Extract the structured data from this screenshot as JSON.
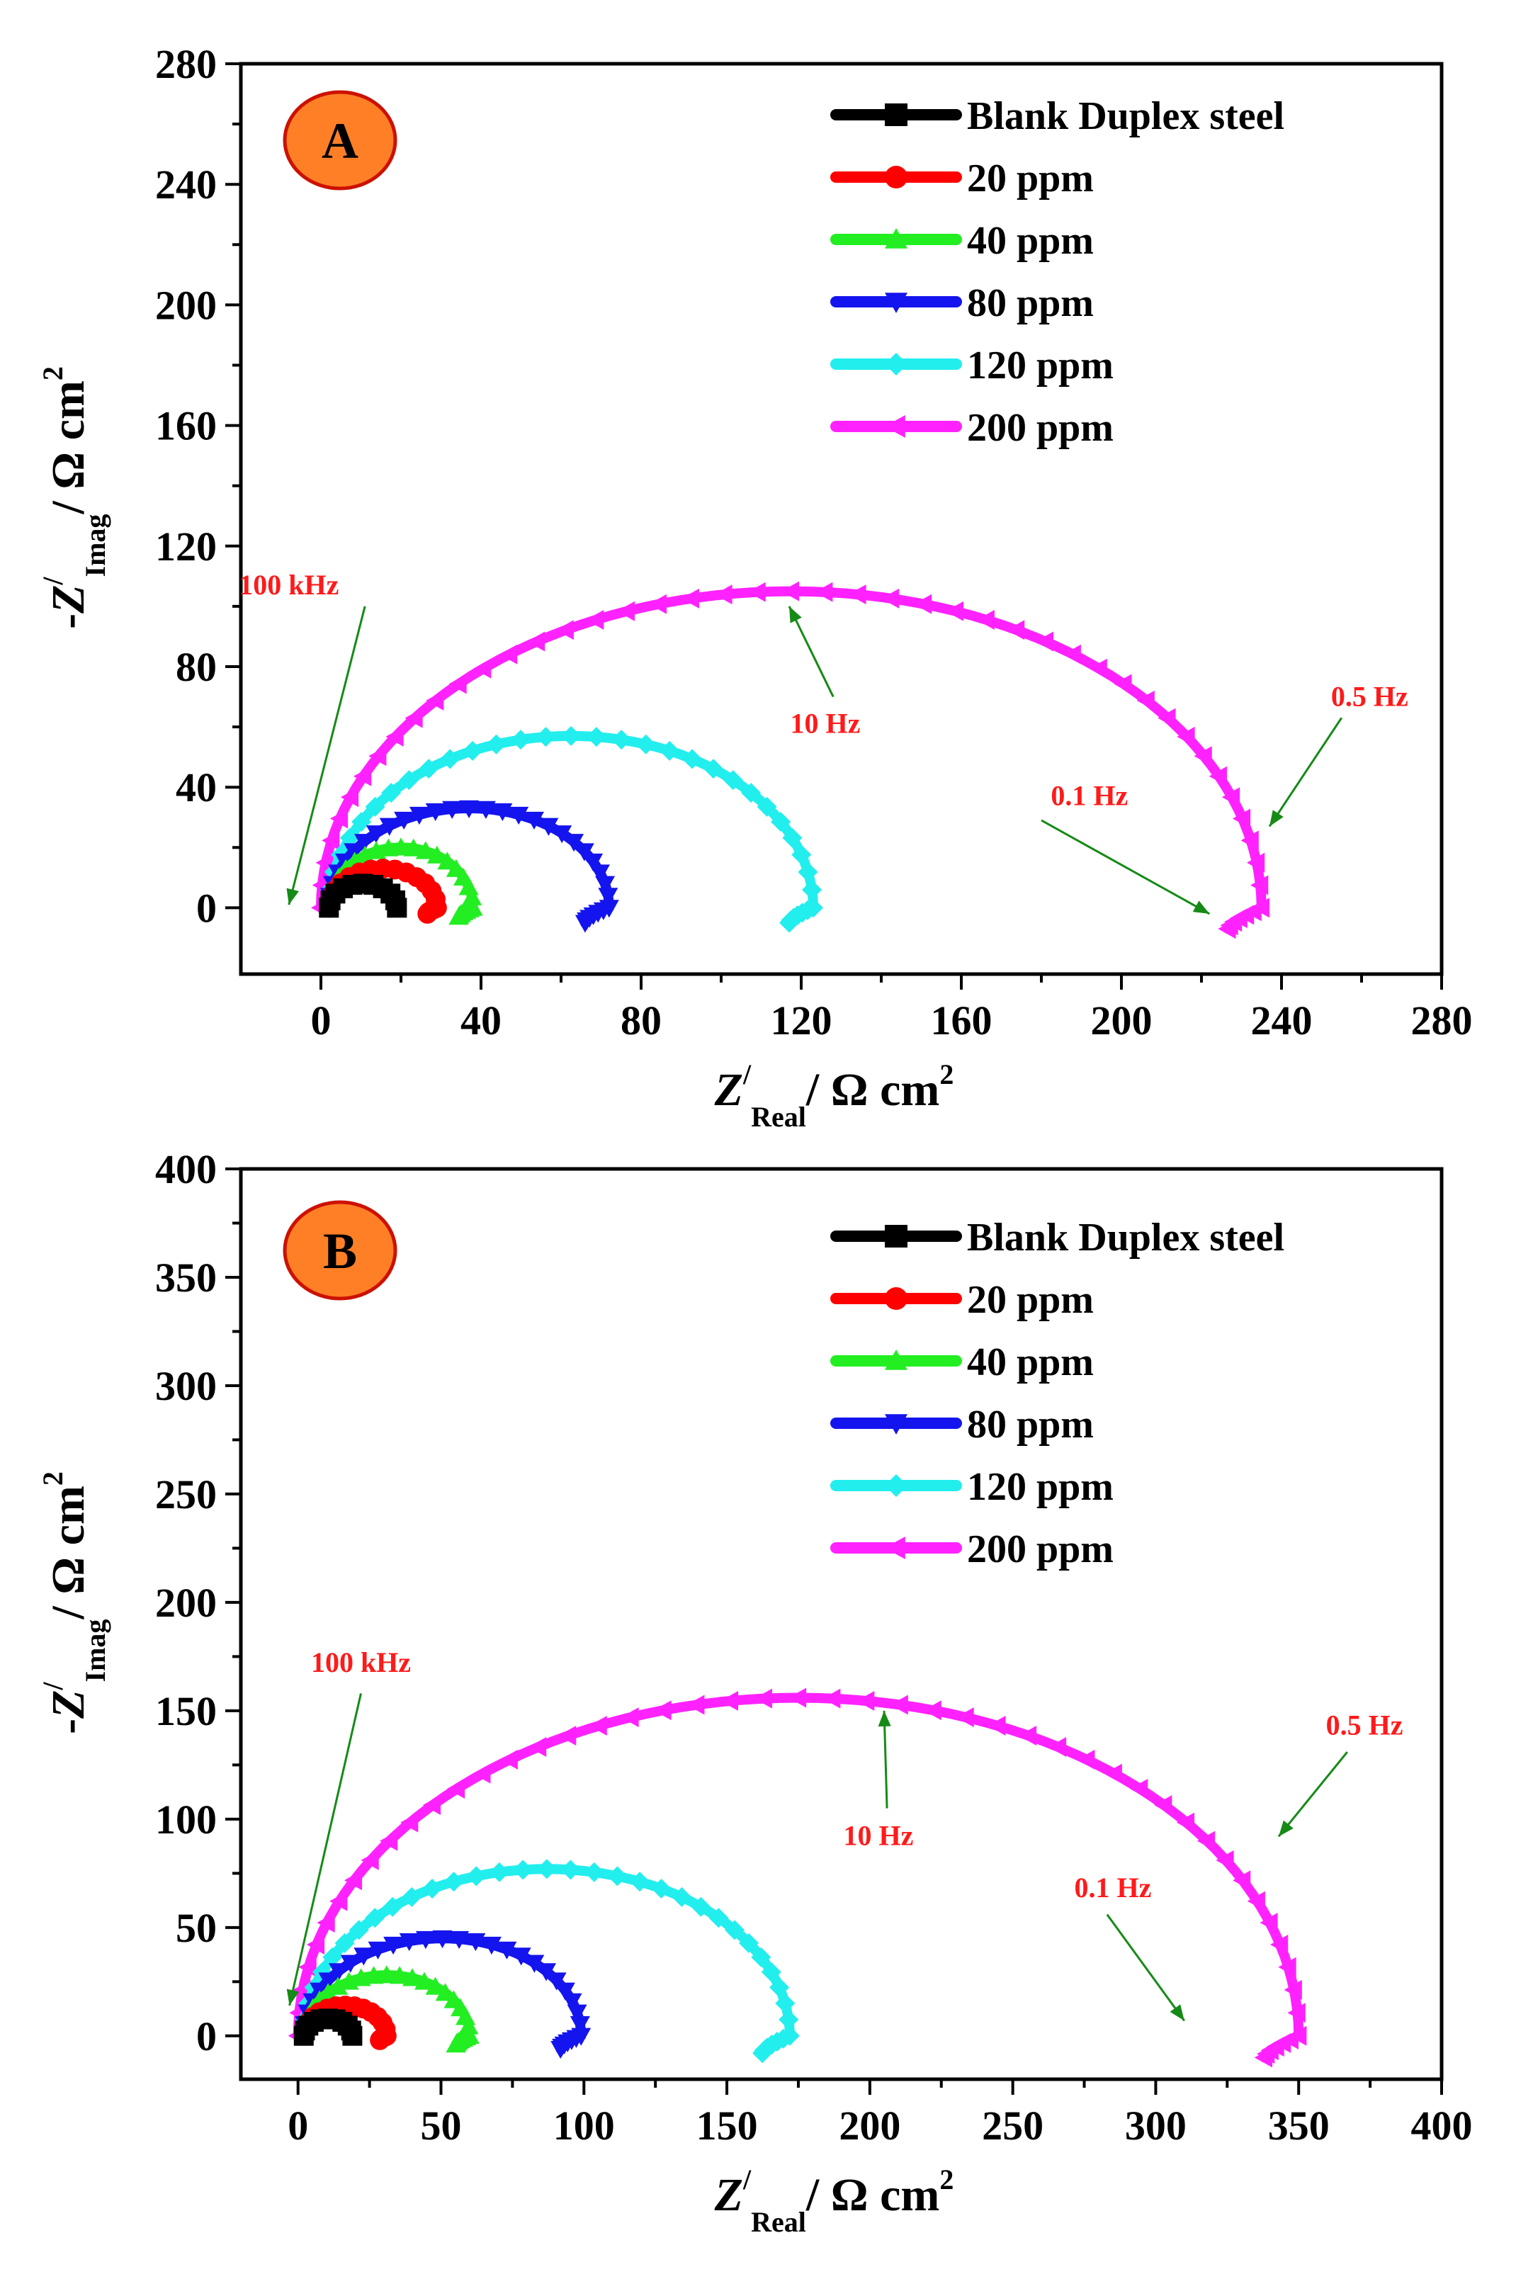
{
  "figure": {
    "series_styles": [
      {
        "name": "Blank Duplex steel",
        "color": "#000000",
        "marker": "square"
      },
      {
        "name": "20 ppm",
        "color": "#ff0000",
        "marker": "circle"
      },
      {
        "name": "40 ppm",
        "color": "#22ee22",
        "marker": "triangle-up"
      },
      {
        "name": "80 ppm",
        "color": "#1414ee",
        "marker": "triangle-down"
      },
      {
        "name": "120 ppm",
        "color": "#22eeee",
        "marker": "diamond"
      },
      {
        "name": "200 ppm",
        "color": "#ff22ff",
        "marker": "triangle-left"
      }
    ],
    "badge_fill": "#ff7f27",
    "badge_stroke": "#cc1100",
    "annotation_color": "#ff1a1a",
    "arrow_color": "#168a16"
  },
  "chart_data": [
    {
      "type": "scatter",
      "panel_label": "A",
      "xlabel": {
        "main": "Z",
        "prime": "/",
        "sub": "Real",
        "unit": "/ Ω cm",
        "sup": "2"
      },
      "ylabel": {
        "sign": "-",
        "main": "Z",
        "prime": "/",
        "sub": "Imag",
        "unit": "/ Ω cm",
        "sup": "2"
      },
      "xlim": [
        -20,
        280
      ],
      "ylim": [
        -22,
        280
      ],
      "xticks": [
        0,
        40,
        80,
        120,
        160,
        200,
        240,
        280
      ],
      "yticks": [
        0,
        40,
        80,
        120,
        160,
        200,
        240,
        280
      ],
      "series": [
        {
          "name": "Blank Duplex steel",
          "peak": 8,
          "rs": 2,
          "rct": 17,
          "tail": 0,
          "markers": 10
        },
        {
          "name": "20 ppm",
          "peak": 13,
          "rs": 2,
          "rct": 27,
          "tail": 2,
          "markers": 14
        },
        {
          "name": "40 ppm",
          "peak": 20,
          "rs": 2,
          "rct": 36,
          "tail": 3,
          "markers": 18
        },
        {
          "name": "80 ppm",
          "peak": 33,
          "rs": 2,
          "rct": 70,
          "tail": 5,
          "markers": 26
        },
        {
          "name": "120 ppm",
          "peak": 57,
          "rs": 2,
          "rct": 121,
          "tail": 5,
          "markers": 30
        },
        {
          "name": "200 ppm",
          "peak": 105,
          "rs": 0,
          "rct": 235,
          "tail": 7,
          "markers": 44
        }
      ],
      "annotations": [
        {
          "text": "100 kHz",
          "x": -8,
          "y": 104,
          "arrow_from": [
            11,
            100
          ],
          "arrow_to": [
            -8,
            1
          ]
        },
        {
          "text": "10 Hz",
          "x": 126,
          "y": 58,
          "arrow_from": [
            128,
            70
          ],
          "arrow_to": [
            117,
            100
          ]
        },
        {
          "text": "0.5 Hz",
          "x": 262,
          "y": 67,
          "arrow_from": [
            255,
            63
          ],
          "arrow_to": [
            237,
            27
          ]
        },
        {
          "text": "0.1 Hz",
          "x": 192,
          "y": 34,
          "arrow_from": [
            180,
            29
          ],
          "arrow_to": [
            222,
            -2
          ]
        }
      ]
    },
    {
      "type": "scatter",
      "panel_label": "B",
      "xlabel": {
        "main": "Z",
        "prime": "/",
        "sub": "Real",
        "unit": "/ Ω cm",
        "sup": "2"
      },
      "ylabel": {
        "sign": "-",
        "main": "Z",
        "prime": "/",
        "sub": "Imag",
        "unit": "/ Ω cm",
        "sup": "2"
      },
      "xlim": [
        -20,
        400
      ],
      "ylim": [
        -20,
        400
      ],
      "xticks": [
        0,
        50,
        100,
        150,
        200,
        250,
        300,
        350,
        400
      ],
      "yticks": [
        0,
        50,
        100,
        150,
        200,
        250,
        300,
        350,
        400
      ],
      "series": [
        {
          "name": "Blank Duplex steel",
          "peak": 8,
          "rs": 2,
          "rct": 17,
          "tail": 0,
          "markers": 10
        },
        {
          "name": "20 ppm",
          "peak": 14,
          "rs": 2,
          "rct": 29,
          "tail": 2,
          "markers": 14
        },
        {
          "name": "40 ppm",
          "peak": 28,
          "rs": 2,
          "rct": 58,
          "tail": 4,
          "markers": 20
        },
        {
          "name": "80 ppm",
          "peak": 45,
          "rs": 2,
          "rct": 97,
          "tail": 6,
          "markers": 26
        },
        {
          "name": "120 ppm",
          "peak": 77,
          "rs": 2,
          "rct": 170,
          "tail": 8,
          "markers": 32
        },
        {
          "name": "200 ppm",
          "peak": 156,
          "rs": 0,
          "rct": 350,
          "tail": 10,
          "markers": 46
        }
      ],
      "annotations": [
        {
          "text": "100 kHz",
          "x": 22,
          "y": 168,
          "arrow_from": [
            22,
            158
          ],
          "arrow_to": [
            -3,
            14
          ]
        },
        {
          "text": "10 Hz",
          "x": 203,
          "y": 88,
          "arrow_from": [
            206,
            105
          ],
          "arrow_to": [
            205,
            150
          ]
        },
        {
          "text": "0.5 Hz",
          "x": 373,
          "y": 139,
          "arrow_from": [
            367,
            131
          ],
          "arrow_to": [
            343,
            92
          ]
        },
        {
          "text": "0.1 Hz",
          "x": 285,
          "y": 64,
          "arrow_from": [
            283,
            56
          ],
          "arrow_to": [
            310,
            7
          ]
        }
      ]
    }
  ]
}
